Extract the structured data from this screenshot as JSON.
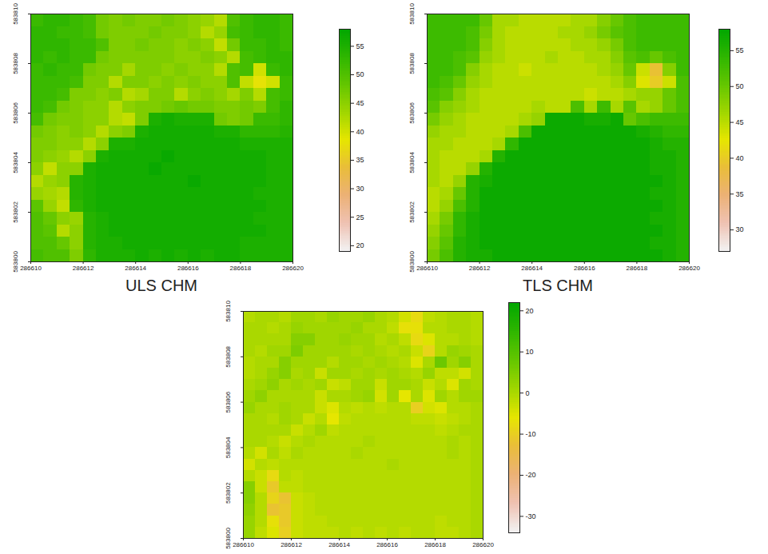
{
  "chart_data": [
    {
      "type": "heatmap",
      "title": "ULS CHM",
      "xlim": [
        286610,
        286620
      ],
      "xticks": [
        286610,
        286612,
        286614,
        286616,
        286618,
        286620
      ],
      "ylim": [
        583800,
        583810
      ],
      "yticks": [
        583800,
        583802,
        583804,
        583806,
        583808,
        583810
      ],
      "colorbar_lim": [
        19,
        58
      ],
      "colorbar_ticks": [
        20,
        25,
        30,
        35,
        40,
        45,
        50,
        55
      ],
      "cells": [
        [
          52,
          53,
          53,
          52,
          51,
          47,
          46,
          47,
          46,
          46,
          47,
          46,
          45,
          44,
          42,
          50,
          52,
          53,
          53,
          52
        ],
        [
          53,
          53,
          52,
          52,
          51,
          47,
          46,
          46,
          46,
          47,
          46,
          46,
          45,
          42,
          44,
          51,
          52,
          53,
          53,
          52
        ],
        [
          53,
          53,
          53,
          52,
          52,
          50,
          46,
          46,
          47,
          46,
          46,
          45,
          46,
          45,
          41,
          47,
          52,
          52,
          53,
          52
        ],
        [
          53,
          52,
          53,
          52,
          52,
          47,
          46,
          46,
          46,
          46,
          46,
          45,
          45,
          46,
          45,
          42,
          51,
          52,
          53,
          53
        ],
        [
          52,
          53,
          52,
          52,
          47,
          46,
          46,
          43,
          46,
          46,
          45,
          46,
          45,
          45,
          42,
          50,
          51,
          40,
          52,
          53
        ],
        [
          52,
          52,
          52,
          51,
          46,
          46,
          42,
          46,
          46,
          45,
          46,
          45,
          46,
          45,
          45,
          50,
          41,
          38,
          40,
          52
        ],
        [
          52,
          52,
          51,
          46,
          46,
          45,
          46,
          42,
          43,
          46,
          46,
          42,
          45,
          46,
          45,
          43,
          46,
          42,
          51,
          52
        ],
        [
          52,
          51,
          47,
          46,
          45,
          45,
          42,
          45,
          46,
          46,
          47,
          48,
          47,
          47,
          46,
          46,
          47,
          46,
          51,
          53
        ],
        [
          51,
          47,
          46,
          46,
          45,
          45,
          42,
          41,
          46,
          55,
          56,
          55,
          55,
          55,
          47,
          46,
          47,
          52,
          52,
          53
        ],
        [
          47,
          46,
          45,
          46,
          45,
          42,
          45,
          46,
          55,
          56,
          56,
          56,
          56,
          56,
          55,
          55,
          53,
          53,
          53,
          54
        ],
        [
          46,
          46,
          45,
          45,
          42,
          45,
          55,
          55,
          56,
          56,
          56,
          56,
          56,
          56,
          56,
          56,
          55,
          55,
          55,
          55
        ],
        [
          46,
          45,
          44,
          42,
          45,
          55,
          56,
          56,
          56,
          56,
          57,
          56,
          56,
          56,
          56,
          56,
          56,
          56,
          55,
          55
        ],
        [
          45,
          41,
          45,
          45,
          55,
          56,
          56,
          56,
          56,
          57,
          56,
          56,
          56,
          56,
          56,
          56,
          56,
          56,
          55,
          55
        ],
        [
          42,
          44,
          45,
          54,
          55,
          56,
          56,
          56,
          56,
          56,
          56,
          56,
          57,
          56,
          56,
          56,
          56,
          56,
          55,
          55
        ],
        [
          44,
          43,
          42,
          54,
          55,
          56,
          56,
          56,
          56,
          56,
          56,
          56,
          56,
          56,
          56,
          56,
          56,
          55,
          55,
          55
        ],
        [
          49,
          44,
          41,
          53,
          55,
          56,
          56,
          56,
          56,
          56,
          56,
          56,
          56,
          56,
          56,
          56,
          56,
          56,
          55,
          55
        ],
        [
          50,
          48,
          45,
          44,
          54,
          55,
          56,
          56,
          56,
          56,
          56,
          56,
          56,
          56,
          56,
          56,
          56,
          55,
          55,
          55
        ],
        [
          50,
          49,
          42,
          45,
          54,
          55,
          56,
          56,
          56,
          56,
          56,
          56,
          56,
          56,
          56,
          56,
          56,
          56,
          55,
          55
        ],
        [
          50,
          50,
          48,
          45,
          54,
          55,
          55,
          56,
          56,
          56,
          56,
          56,
          56,
          56,
          56,
          56,
          55,
          55,
          55,
          55
        ],
        [
          51,
          50,
          50,
          46,
          53,
          55,
          55,
          55,
          56,
          55,
          56,
          55,
          56,
          55,
          56,
          56,
          55,
          55,
          55,
          55
        ]
      ]
    },
    {
      "type": "heatmap",
      "title": "TLS CHM",
      "xlim": [
        286610,
        286620
      ],
      "xticks": [
        286610,
        286612,
        286614,
        286616,
        286618,
        286620
      ],
      "ylim": [
        583800,
        583810
      ],
      "yticks": [
        583800,
        583802,
        583804,
        583806,
        583808,
        583810
      ],
      "colorbar_lim": [
        27,
        58
      ],
      "colorbar_ticks": [
        30,
        35,
        40,
        45,
        50,
        55
      ],
      "cells": [
        [
          53,
          53,
          53,
          53,
          50,
          46,
          46,
          45,
          45,
          45,
          45,
          46,
          46,
          48,
          50,
          52,
          53,
          53,
          53,
          53
        ],
        [
          53,
          53,
          53,
          52,
          49,
          46,
          45,
          45,
          45,
          45,
          46,
          46,
          47,
          49,
          51,
          52,
          53,
          53,
          53,
          53
        ],
        [
          53,
          53,
          53,
          52,
          48,
          46,
          45,
          45,
          45,
          45,
          45,
          46,
          46,
          47,
          49,
          52,
          53,
          53,
          53,
          53
        ],
        [
          53,
          53,
          52,
          51,
          47,
          46,
          45,
          45,
          45,
          46,
          45,
          45,
          46,
          46,
          48,
          51,
          52,
          50,
          52,
          53
        ],
        [
          53,
          53,
          52,
          48,
          46,
          45,
          45,
          44,
          45,
          45,
          45,
          45,
          45,
          46,
          47,
          50,
          44,
          39,
          48,
          53
        ],
        [
          53,
          52,
          50,
          47,
          46,
          45,
          45,
          45,
          45,
          45,
          45,
          45,
          45,
          45,
          46,
          48,
          43,
          40,
          44,
          52
        ],
        [
          52,
          51,
          48,
          46,
          45,
          45,
          45,
          45,
          45,
          45,
          45,
          45,
          44,
          45,
          45,
          46,
          47,
          47,
          50,
          52
        ],
        [
          51,
          48,
          47,
          46,
          45,
          45,
          45,
          45,
          46,
          45,
          45,
          52,
          46,
          53,
          46,
          51,
          46,
          47,
          50,
          52
        ],
        [
          49,
          47,
          46,
          45,
          45,
          45,
          45,
          46,
          47,
          57,
          57,
          57,
          56,
          56,
          57,
          50,
          52,
          53,
          53,
          53
        ],
        [
          47,
          46,
          46,
          45,
          45,
          45,
          46,
          52,
          57,
          57,
          57,
          57,
          57,
          57,
          57,
          57,
          56,
          55,
          54,
          54
        ],
        [
          46,
          46,
          45,
          45,
          45,
          46,
          54,
          57,
          57,
          57,
          57,
          57,
          57,
          57,
          57,
          57,
          57,
          56,
          55,
          55
        ],
        [
          46,
          45,
          45,
          45,
          46,
          55,
          57,
          57,
          57,
          57,
          57,
          57,
          57,
          57,
          57,
          57,
          57,
          56,
          56,
          55
        ],
        [
          46,
          45,
          45,
          47,
          55,
          57,
          57,
          57,
          57,
          57,
          57,
          57,
          57,
          57,
          57,
          57,
          57,
          56,
          56,
          55
        ],
        [
          46,
          45,
          47,
          55,
          56,
          57,
          57,
          57,
          57,
          57,
          57,
          57,
          57,
          57,
          57,
          57,
          57,
          57,
          56,
          55
        ],
        [
          45,
          46,
          50,
          55,
          57,
          57,
          57,
          57,
          57,
          57,
          57,
          57,
          57,
          57,
          57,
          57,
          57,
          56,
          56,
          55
        ],
        [
          45,
          47,
          52,
          55,
          57,
          57,
          57,
          57,
          57,
          57,
          57,
          57,
          57,
          57,
          57,
          57,
          57,
          57,
          56,
          55
        ],
        [
          46,
          49,
          54,
          56,
          57,
          57,
          57,
          57,
          57,
          57,
          57,
          57,
          57,
          57,
          57,
          57,
          57,
          56,
          56,
          55
        ],
        [
          47,
          50,
          54,
          56,
          57,
          57,
          57,
          57,
          57,
          57,
          57,
          57,
          57,
          57,
          57,
          57,
          57,
          57,
          56,
          55
        ],
        [
          48,
          51,
          55,
          56,
          57,
          57,
          57,
          57,
          57,
          57,
          57,
          57,
          57,
          57,
          57,
          57,
          57,
          56,
          56,
          55
        ],
        [
          49,
          52,
          55,
          56,
          56,
          57,
          57,
          57,
          57,
          57,
          57,
          57,
          57,
          57,
          57,
          57,
          57,
          57,
          56,
          55
        ]
      ]
    },
    {
      "type": "heatmap",
      "xlim": [
        286610,
        286620
      ],
      "xticks": [
        286610,
        286612,
        286614,
        286616,
        286618,
        286620
      ],
      "ylim": [
        583800,
        583810
      ],
      "yticks": [
        583800,
        583802,
        583804,
        583806,
        583808,
        583810
      ],
      "colorbar_lim": [
        -34,
        22
      ],
      "colorbar_ticks": [
        -30,
        -20,
        -10,
        0,
        10,
        20
      ],
      "cells": [
        [
          -1,
          0,
          0,
          -1,
          1,
          1,
          0,
          2,
          1,
          1,
          2,
          0,
          -1,
          -4,
          -8,
          -2,
          -1,
          0,
          0,
          -1
        ],
        [
          0,
          0,
          -1,
          0,
          2,
          1,
          1,
          1,
          1,
          2,
          0,
          0,
          -2,
          -7,
          -7,
          -1,
          -1,
          0,
          0,
          -1
        ],
        [
          0,
          0,
          0,
          0,
          4,
          4,
          1,
          1,
          2,
          1,
          1,
          -1,
          0,
          -2,
          -8,
          -5,
          -1,
          -1,
          0,
          -1
        ],
        [
          0,
          -1,
          1,
          1,
          5,
          1,
          1,
          1,
          1,
          0,
          1,
          0,
          -1,
          0,
          -3,
          -9,
          -1,
          2,
          1,
          0
        ],
        [
          -1,
          0,
          0,
          4,
          1,
          1,
          1,
          -1,
          1,
          1,
          0,
          1,
          0,
          -1,
          -5,
          0,
          7,
          1,
          4,
          0
        ],
        [
          -1,
          0,
          2,
          4,
          0,
          1,
          -3,
          1,
          1,
          0,
          1,
          0,
          1,
          0,
          -1,
          2,
          -2,
          -2,
          -4,
          0
        ],
        [
          0,
          1,
          3,
          0,
          1,
          0,
          1,
          -3,
          -2,
          1,
          1,
          -3,
          1,
          1,
          0,
          -3,
          -1,
          -5,
          1,
          0
        ],
        [
          1,
          3,
          0,
          0,
          0,
          0,
          -3,
          0,
          0,
          1,
          2,
          -4,
          1,
          -6,
          0,
          -5,
          1,
          -1,
          1,
          1
        ],
        [
          2,
          0,
          0,
          1,
          0,
          0,
          -3,
          -5,
          -1,
          -2,
          -1,
          -2,
          -1,
          -1,
          -10,
          -4,
          -5,
          -1,
          -1,
          0
        ],
        [
          0,
          0,
          -1,
          1,
          0,
          -3,
          -1,
          -6,
          -2,
          -1,
          -1,
          -1,
          -1,
          -1,
          -2,
          -2,
          -3,
          -2,
          -1,
          0
        ],
        [
          0,
          0,
          0,
          0,
          -3,
          -1,
          1,
          -2,
          -1,
          -1,
          -1,
          -1,
          -1,
          -1,
          -1,
          -1,
          -2,
          -1,
          0,
          0
        ],
        [
          0,
          0,
          -1,
          -3,
          -1,
          0,
          -1,
          -1,
          -1,
          -1,
          0,
          -1,
          -1,
          -1,
          -1,
          -1,
          -1,
          0,
          -1,
          0
        ],
        [
          -1,
          -4,
          0,
          -2,
          0,
          -1,
          -1,
          -1,
          -1,
          0,
          -1,
          -1,
          -1,
          -1,
          -1,
          -1,
          -1,
          0,
          -1,
          0
        ],
        [
          -4,
          -1,
          -2,
          -1,
          -1,
          -1,
          -1,
          -1,
          -1,
          -1,
          -1,
          -1,
          0,
          -1,
          -1,
          -1,
          -1,
          -1,
          -1,
          0
        ],
        [
          -1,
          -3,
          -8,
          -1,
          -2,
          -1,
          -1,
          -1,
          -1,
          -1,
          -1,
          -1,
          -1,
          -1,
          -1,
          -1,
          -1,
          -1,
          -1,
          0
        ],
        [
          4,
          -3,
          -11,
          -2,
          -2,
          -1,
          -1,
          -1,
          -1,
          -1,
          -1,
          -1,
          -1,
          -1,
          -1,
          -1,
          -1,
          -1,
          -1,
          0
        ],
        [
          4,
          -1,
          -9,
          -12,
          -3,
          -2,
          -1,
          -1,
          -1,
          -1,
          -1,
          -1,
          -1,
          -1,
          -1,
          -1,
          -1,
          -1,
          -1,
          0
        ],
        [
          3,
          -1,
          -12,
          -11,
          -3,
          -2,
          -1,
          -1,
          -1,
          -1,
          -1,
          -1,
          -1,
          -1,
          -1,
          -1,
          -1,
          -1,
          -1,
          0
        ],
        [
          2,
          -1,
          -7,
          -11,
          -3,
          -2,
          -2,
          -1,
          -1,
          -1,
          -1,
          -1,
          -1,
          -1,
          -1,
          -1,
          -2,
          -1,
          -1,
          0
        ],
        [
          2,
          -2,
          -5,
          -10,
          -3,
          -2,
          -2,
          -2,
          -1,
          -2,
          -1,
          -2,
          -1,
          -2,
          -1,
          -1,
          -2,
          -2,
          -1,
          0
        ]
      ]
    }
  ]
}
